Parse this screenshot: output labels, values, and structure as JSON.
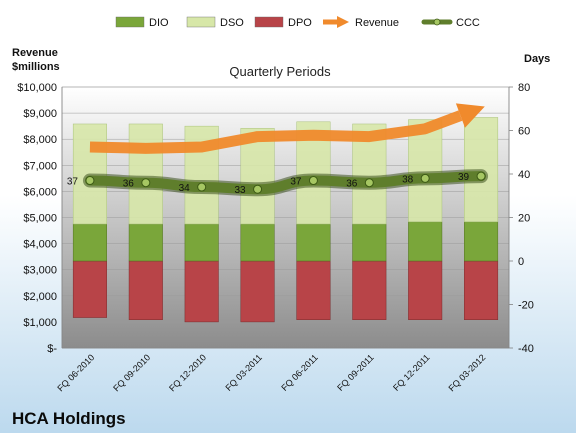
{
  "chart_data": {
    "type": "bar",
    "title": "Quarterly Periods",
    "company": "HCA Holdings",
    "y_left_label": [
      "Revenue",
      "$millions"
    ],
    "y_right_label": "Days",
    "left_axis": {
      "range": [
        0,
        10000
      ],
      "ticks": [
        "$-",
        "$1,000",
        "$2,000",
        "$3,000",
        "$4,000",
        "$5,000",
        "$6,000",
        "$7,000",
        "$8,000",
        "$9,000",
        "$10,000"
      ]
    },
    "right_axis": {
      "range": [
        -40,
        80
      ],
      "ticks": [
        "-40",
        "-20",
        "0",
        "20",
        "40",
        "60",
        "80"
      ]
    },
    "categories": [
      "FQ 06-2010",
      "FQ 09-2010",
      "FQ 12-2010",
      "FQ 03-2011",
      "FQ 06-2011",
      "FQ 09-2011",
      "FQ 12-2011",
      "FQ 03-2012"
    ],
    "legend": [
      {
        "name": "DIO",
        "kind": "bar",
        "color": "#7aa63a"
      },
      {
        "name": "DSO",
        "kind": "bar",
        "color": "#d7e7a8"
      },
      {
        "name": "DPO",
        "kind": "bar",
        "color": "#b84448"
      },
      {
        "name": "Revenue",
        "kind": "arrow",
        "color": "#f08a2c"
      },
      {
        "name": "CCC",
        "kind": "line",
        "color": "#5f7e2c"
      }
    ],
    "series": [
      {
        "name": "DPO",
        "axis": "right",
        "values": [
          -26,
          -27,
          -28,
          -28,
          -27,
          -27,
          -27,
          -27
        ]
      },
      {
        "name": "DIO",
        "axis": "right",
        "values": [
          17,
          17,
          17,
          17,
          17,
          17,
          18,
          18
        ]
      },
      {
        "name": "DSO",
        "axis": "right",
        "values": [
          46,
          46,
          45,
          44,
          47,
          46,
          47,
          48
        ]
      },
      {
        "name": "CCC",
        "axis": "right",
        "values": [
          37,
          36,
          34,
          33,
          37,
          36,
          38,
          39
        ],
        "labels": [
          "37",
          "36",
          "34",
          "33",
          "37",
          "36",
          "38",
          "39"
        ]
      },
      {
        "name": "Revenue",
        "axis": "left",
        "values": [
          7700,
          7650,
          7700,
          8100,
          8150,
          8100,
          8400,
          9200
        ]
      }
    ]
  }
}
